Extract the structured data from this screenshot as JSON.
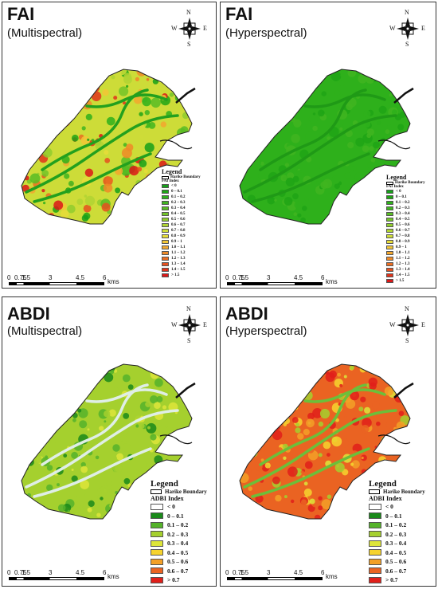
{
  "colors": {
    "fai_scale": [
      "#16a01a",
      "#1fa515",
      "#2eb01b",
      "#40b520",
      "#58bc24",
      "#72c428",
      "#90cd2e",
      "#b0d433",
      "#cedc38",
      "#e6dc3a",
      "#f2c636",
      "#f2a72e",
      "#ee8a27",
      "#ea6d22",
      "#e5501f",
      "#e0331b",
      "#da1818"
    ],
    "abdi_scale": [
      "#ffffff",
      "#1a8a1a",
      "#55b32a",
      "#a5d02e",
      "#dde53a",
      "#f6d32e",
      "#f3a027",
      "#ea6322",
      "#e01f1a"
    ],
    "water_fai_multi": "#2c9a2a",
    "water_abdi": "#c8e6e6"
  },
  "compass": {
    "n": "N",
    "s": "S",
    "e": "E",
    "w": "W"
  },
  "scale_bar": {
    "ticks": [
      "0",
      "0.75",
      "1.5",
      "3",
      "4.5",
      "6"
    ],
    "unit": "kms"
  },
  "panels": [
    {
      "id": "fai-multi",
      "title": "FAI",
      "subtitle": "(Multispectral)",
      "map_style": "fai-multi",
      "legend": {
        "title": "Legend",
        "boundary": "Harike Boundary",
        "index_title": "FAI Index",
        "classes": [
          "< 0",
          "0 – 0.1",
          "0.1 – 0.2",
          "0.2 – 0.3",
          "0.3 – 0.4",
          "0.4 – 0.5",
          "0.5 – 0.6",
          "0.6 – 0.7",
          "0.7 – 0.8",
          "0.8 – 0.9",
          "0.9 – 1",
          "1.0 – 1.1",
          "1.1 – 1.2",
          "1.2 – 1.3",
          "1.3 – 1.4",
          "1.4 – 1.5",
          "> 1.5"
        ]
      }
    },
    {
      "id": "fai-hyper",
      "title": "FAI",
      "subtitle": "(Hyperspectral)",
      "map_style": "fai-hyper",
      "legend": {
        "title": "Legend",
        "boundary": "Harike Boundary",
        "index_title": "FAI Index",
        "classes": [
          "< 0",
          "0 – 0.1",
          "0.1 – 0.2",
          "0.2 – 0.3",
          "0.3 – 0.4",
          "0.4 – 0.5",
          "0.5 – 0.6",
          "0.6 – 0.7",
          "0.7 – 0.8",
          "0.8 – 0.9",
          "0.9 – 1",
          "1.0 – 1.1",
          "1.1 – 1.2",
          "1.2 – 1.3",
          "1.3 – 1.4",
          "1.4 – 1.5",
          "> 1.5"
        ]
      }
    },
    {
      "id": "abdi-multi",
      "title": "ABDI",
      "subtitle": "(Multispectral)",
      "map_style": "abdi-multi",
      "legend": {
        "title": "Legend",
        "boundary": "Harike Boundary",
        "index_title": "ADBI Index",
        "classes": [
          "< 0",
          "0 – 0.1",
          "0.1 – 0.2",
          "0.2 – 0.3",
          "0.3 – 0.4",
          "0.4 – 0.5",
          "0.5 – 0.6",
          "0.6 – 0.7",
          "> 0.7"
        ]
      }
    },
    {
      "id": "abdi-hyper",
      "title": "ABDI",
      "subtitle": "(Hyperspectral)",
      "map_style": "abdi-hyper",
      "legend": {
        "title": "Legend",
        "boundary": "Harike Boundary",
        "index_title": "ADBI Index",
        "classes": [
          "< 0",
          "0 – 0.1",
          "0.1 – 0.2",
          "0.2 – 0.3",
          "0.3 – 0.4",
          "0.4 – 0.5",
          "0.5 – 0.6",
          "0.6 – 0.7",
          "> 0.7"
        ]
      }
    }
  ]
}
